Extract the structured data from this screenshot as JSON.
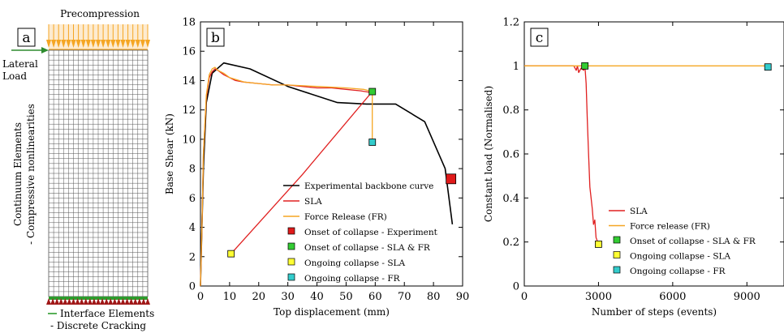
{
  "panel_a": {
    "tag": "a",
    "precompression": "Precompression",
    "lateral_load": [
      "Lateral",
      "Load"
    ],
    "continuum": [
      "Continuum Elements",
      "- Compressive nonlinearities"
    ],
    "interface": [
      "Interface Elements",
      "- Discrete Cracking"
    ],
    "colors": {
      "precompression": "#f5a623",
      "mesh": "#555555",
      "interface": "#2e9d2e",
      "support": "#a01818",
      "lateral": "#2e8b2e"
    }
  },
  "chart_data": [
    {
      "type": "line",
      "tag": "b",
      "xlabel": "Top displacement (mm)",
      "ylabel": "Base Shear (kN)",
      "xlim": [
        0,
        90
      ],
      "ylim": [
        0,
        18
      ],
      "xticks": [
        0,
        10,
        20,
        30,
        40,
        50,
        60,
        70,
        80,
        90
      ],
      "yticks": [
        0,
        2,
        4,
        6,
        8,
        10,
        12,
        14,
        16,
        18
      ],
      "grid": false,
      "legend": "center-right",
      "series": [
        {
          "name": "Experimental backbone curve",
          "color": "#000000",
          "x": [
            0,
            1,
            2,
            4,
            8,
            17,
            30,
            47,
            57,
            67,
            77,
            84,
            86.5
          ],
          "y": [
            0,
            8,
            12.5,
            14.5,
            15.2,
            14.8,
            13.6,
            12.5,
            12.4,
            12.4,
            11.2,
            8,
            4.2
          ]
        },
        {
          "name": "SLA",
          "color": "#e02020",
          "x": [
            0,
            0.5,
            1,
            2,
            3,
            4,
            5,
            6,
            8,
            10,
            12,
            15,
            20,
            25,
            30,
            35,
            40,
            45,
            50,
            55,
            58,
            59,
            35,
            10.5
          ],
          "y": [
            0,
            4,
            9,
            12.8,
            14.2,
            14.6,
            14.8,
            14.7,
            14.4,
            14.2,
            14.0,
            13.9,
            13.8,
            13.7,
            13.7,
            13.6,
            13.5,
            13.5,
            13.4,
            13.3,
            13.2,
            13.25,
            7.6,
            2.2
          ]
        },
        {
          "name": "Force Release (FR)",
          "color": "#f5a623",
          "x": [
            0,
            0.5,
            1,
            2,
            3,
            4,
            5,
            6,
            8,
            10,
            15,
            20,
            25,
            30,
            40,
            50,
            56,
            59,
            59
          ],
          "y": [
            0,
            4,
            9,
            13,
            14.4,
            14.8,
            14.9,
            14.7,
            14.5,
            14.2,
            13.9,
            13.8,
            13.7,
            13.7,
            13.6,
            13.5,
            13.4,
            13.25,
            9.8
          ]
        }
      ],
      "markers": [
        {
          "name": "Onset of collapse - Experiment",
          "color": "#e01a1a",
          "x": 86,
          "y": 7.3,
          "big": true
        },
        {
          "name": "Onset of collapse - SLA & FR",
          "color": "#33cc33",
          "x": 59,
          "y": 13.25
        },
        {
          "name": "Ongoing collapse - SLA",
          "color": "#ffff33",
          "x": 10.5,
          "y": 2.2
        },
        {
          "name": "Ongoing collapse - FR",
          "color": "#33cccc",
          "x": 59,
          "y": 9.8
        }
      ]
    },
    {
      "type": "line",
      "tag": "c",
      "xlabel": "Number of steps (events)",
      "ylabel": "Constant load (Normalised)",
      "xlim": [
        0,
        10500
      ],
      "ylim": [
        0,
        1.2
      ],
      "xticks": [
        0,
        3000,
        6000,
        9000
      ],
      "yticks": [
        0,
        0.2,
        0.4,
        0.6,
        0.8,
        1,
        1.2
      ],
      "grid": false,
      "legend": "bottom-center",
      "series": [
        {
          "name": "SLA",
          "color": "#e02020",
          "x": [
            0,
            2000,
            2100,
            2150,
            2200,
            2300,
            2400,
            2450,
            2500,
            2550,
            2600,
            2650,
            2700,
            2750,
            2800,
            2850,
            2900,
            3000
          ],
          "y": [
            1,
            1,
            0.98,
            1,
            0.97,
            0.99,
            0.98,
            1,
            0.92,
            0.75,
            0.6,
            0.45,
            0.4,
            0.35,
            0.28,
            0.3,
            0.22,
            0.19
          ]
        },
        {
          "name": "Force release (FR)",
          "color": "#f5a623",
          "x": [
            0,
            9850
          ],
          "y": [
            1,
            1
          ]
        }
      ],
      "markers": [
        {
          "name": "Onset of collapse - SLA & FR",
          "color": "#33cc33",
          "x": 2450,
          "y": 1.0
        },
        {
          "name": "Ongoing collapse - SLA",
          "color": "#ffff33",
          "x": 3000,
          "y": 0.19
        },
        {
          "name": "Ongoing collapse - FR",
          "color": "#33cccc",
          "x": 9850,
          "y": 0.995
        }
      ]
    }
  ]
}
